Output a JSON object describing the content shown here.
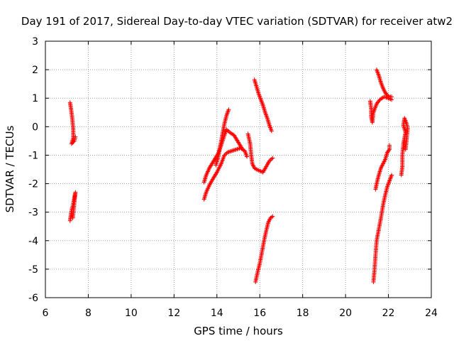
{
  "chart_data": {
    "type": "scatter",
    "title": "Day 191 of 2017, Sidereal Day-to-day VTEC variation (SDTVAR) for receiver atw2",
    "xlabel": "GPS time / hours",
    "ylabel": "SDTVAR / TECUs",
    "xlim": [
      6,
      24
    ],
    "ylim": [
      -6,
      3
    ],
    "xticks": [
      "6",
      "8",
      "10",
      "12",
      "14",
      "16",
      "18",
      "20",
      "22",
      "24"
    ],
    "yticks": [
      "-6",
      "-5",
      "-4",
      "-3",
      "-2",
      "-1",
      "0",
      "1",
      "2",
      "3"
    ],
    "grid": true,
    "marker": "+",
    "color": "#ff0000",
    "segments": [
      [
        [
          7.15,
          0.85
        ],
        [
          7.2,
          0.6
        ],
        [
          7.25,
          0.3
        ],
        [
          7.3,
          -0.1
        ],
        [
          7.3,
          -0.4
        ],
        [
          7.22,
          -0.6
        ],
        [
          7.35,
          -0.5
        ],
        [
          7.4,
          -0.35
        ]
      ],
      [
        [
          7.15,
          -3.3
        ],
        [
          7.2,
          -3.05
        ],
        [
          7.25,
          -2.85
        ],
        [
          7.3,
          -2.7
        ],
        [
          7.35,
          -2.5
        ],
        [
          7.4,
          -2.3
        ],
        [
          7.28,
          -3.2
        ]
      ],
      [
        [
          13.4,
          -2.55
        ],
        [
          13.5,
          -2.3
        ],
        [
          13.65,
          -2.05
        ],
        [
          13.8,
          -1.85
        ],
        [
          14.0,
          -1.6
        ],
        [
          14.2,
          -1.3
        ],
        [
          14.35,
          -1.0
        ],
        [
          14.5,
          -0.9
        ],
        [
          14.7,
          -0.85
        ],
        [
          14.9,
          -0.8
        ],
        [
          15.1,
          -0.75
        ],
        [
          15.3,
          -0.85
        ],
        [
          15.4,
          -1.05
        ]
      ],
      [
        [
          13.4,
          -1.95
        ],
        [
          13.5,
          -1.7
        ],
        [
          13.65,
          -1.45
        ],
        [
          13.85,
          -1.2
        ],
        [
          14.05,
          -0.95
        ],
        [
          14.2,
          -0.65
        ],
        [
          14.35,
          -0.3
        ],
        [
          14.45,
          -0.1
        ],
        [
          14.6,
          -0.2
        ],
        [
          14.8,
          -0.3
        ],
        [
          15.0,
          -0.55
        ],
        [
          15.2,
          -0.8
        ]
      ],
      [
        [
          13.95,
          -1.35
        ],
        [
          14.05,
          -1.1
        ],
        [
          14.15,
          -0.7
        ],
        [
          14.25,
          -0.3
        ],
        [
          14.35,
          0.1
        ],
        [
          14.45,
          0.4
        ],
        [
          14.55,
          0.6
        ]
      ],
      [
        [
          15.45,
          -0.25
        ],
        [
          15.55,
          -0.6
        ],
        [
          15.6,
          -1.0
        ],
        [
          15.65,
          -1.3
        ],
        [
          15.75,
          -1.45
        ],
        [
          15.85,
          -1.5
        ],
        [
          16.0,
          -1.55
        ],
        [
          16.15,
          -1.6
        ],
        [
          16.3,
          -1.4
        ],
        [
          16.45,
          -1.2
        ],
        [
          16.6,
          -1.1
        ]
      ],
      [
        [
          15.75,
          1.65
        ],
        [
          15.85,
          1.4
        ],
        [
          15.95,
          1.15
        ],
        [
          16.05,
          0.95
        ],
        [
          16.15,
          0.75
        ],
        [
          16.25,
          0.5
        ],
        [
          16.35,
          0.3
        ],
        [
          16.45,
          0.05
        ],
        [
          16.55,
          -0.15
        ]
      ],
      [
        [
          15.8,
          -5.45
        ],
        [
          15.9,
          -5.1
        ],
        [
          16.0,
          -4.8
        ],
        [
          16.1,
          -4.4
        ],
        [
          16.2,
          -4.0
        ],
        [
          16.3,
          -3.65
        ],
        [
          16.4,
          -3.35
        ],
        [
          16.5,
          -3.2
        ],
        [
          16.6,
          -3.15
        ]
      ],
      [
        [
          21.15,
          0.9
        ],
        [
          21.2,
          0.6
        ],
        [
          21.2,
          0.35
        ],
        [
          21.25,
          0.15
        ],
        [
          21.3,
          0.5
        ],
        [
          21.45,
          0.8
        ],
        [
          21.6,
          0.95
        ],
        [
          21.8,
          1.05
        ],
        [
          22.0,
          1.0
        ],
        [
          22.15,
          0.95
        ]
      ],
      [
        [
          21.45,
          2.0
        ],
        [
          21.55,
          1.8
        ],
        [
          21.65,
          1.55
        ],
        [
          21.75,
          1.35
        ],
        [
          21.85,
          1.2
        ],
        [
          21.95,
          1.1
        ],
        [
          22.05,
          1.05
        ],
        [
          22.15,
          1.05
        ]
      ],
      [
        [
          21.4,
          -2.2
        ],
        [
          21.45,
          -2.0
        ],
        [
          21.55,
          -1.7
        ],
        [
          21.65,
          -1.45
        ],
        [
          21.75,
          -1.3
        ],
        [
          21.85,
          -1.15
        ],
        [
          21.95,
          -0.9
        ],
        [
          22.05,
          -0.8
        ],
        [
          22.05,
          -0.65
        ]
      ],
      [
        [
          21.3,
          -5.45
        ],
        [
          21.35,
          -5.05
        ],
        [
          21.4,
          -4.5
        ],
        [
          21.45,
          -4.0
        ],
        [
          21.55,
          -3.6
        ],
        [
          21.65,
          -3.2
        ],
        [
          21.75,
          -2.75
        ],
        [
          21.85,
          -2.4
        ],
        [
          21.95,
          -2.1
        ],
        [
          22.05,
          -1.9
        ],
        [
          22.15,
          -1.7
        ]
      ],
      [
        [
          22.6,
          -1.7
        ],
        [
          22.65,
          -1.4
        ],
        [
          22.65,
          -1.0
        ],
        [
          22.7,
          -0.6
        ],
        [
          22.75,
          -0.4
        ],
        [
          22.8,
          -0.2
        ],
        [
          22.7,
          0.05
        ],
        [
          22.75,
          0.3
        ],
        [
          22.85,
          0.1
        ],
        [
          22.9,
          -0.05
        ],
        [
          22.8,
          -0.8
        ]
      ]
    ]
  }
}
